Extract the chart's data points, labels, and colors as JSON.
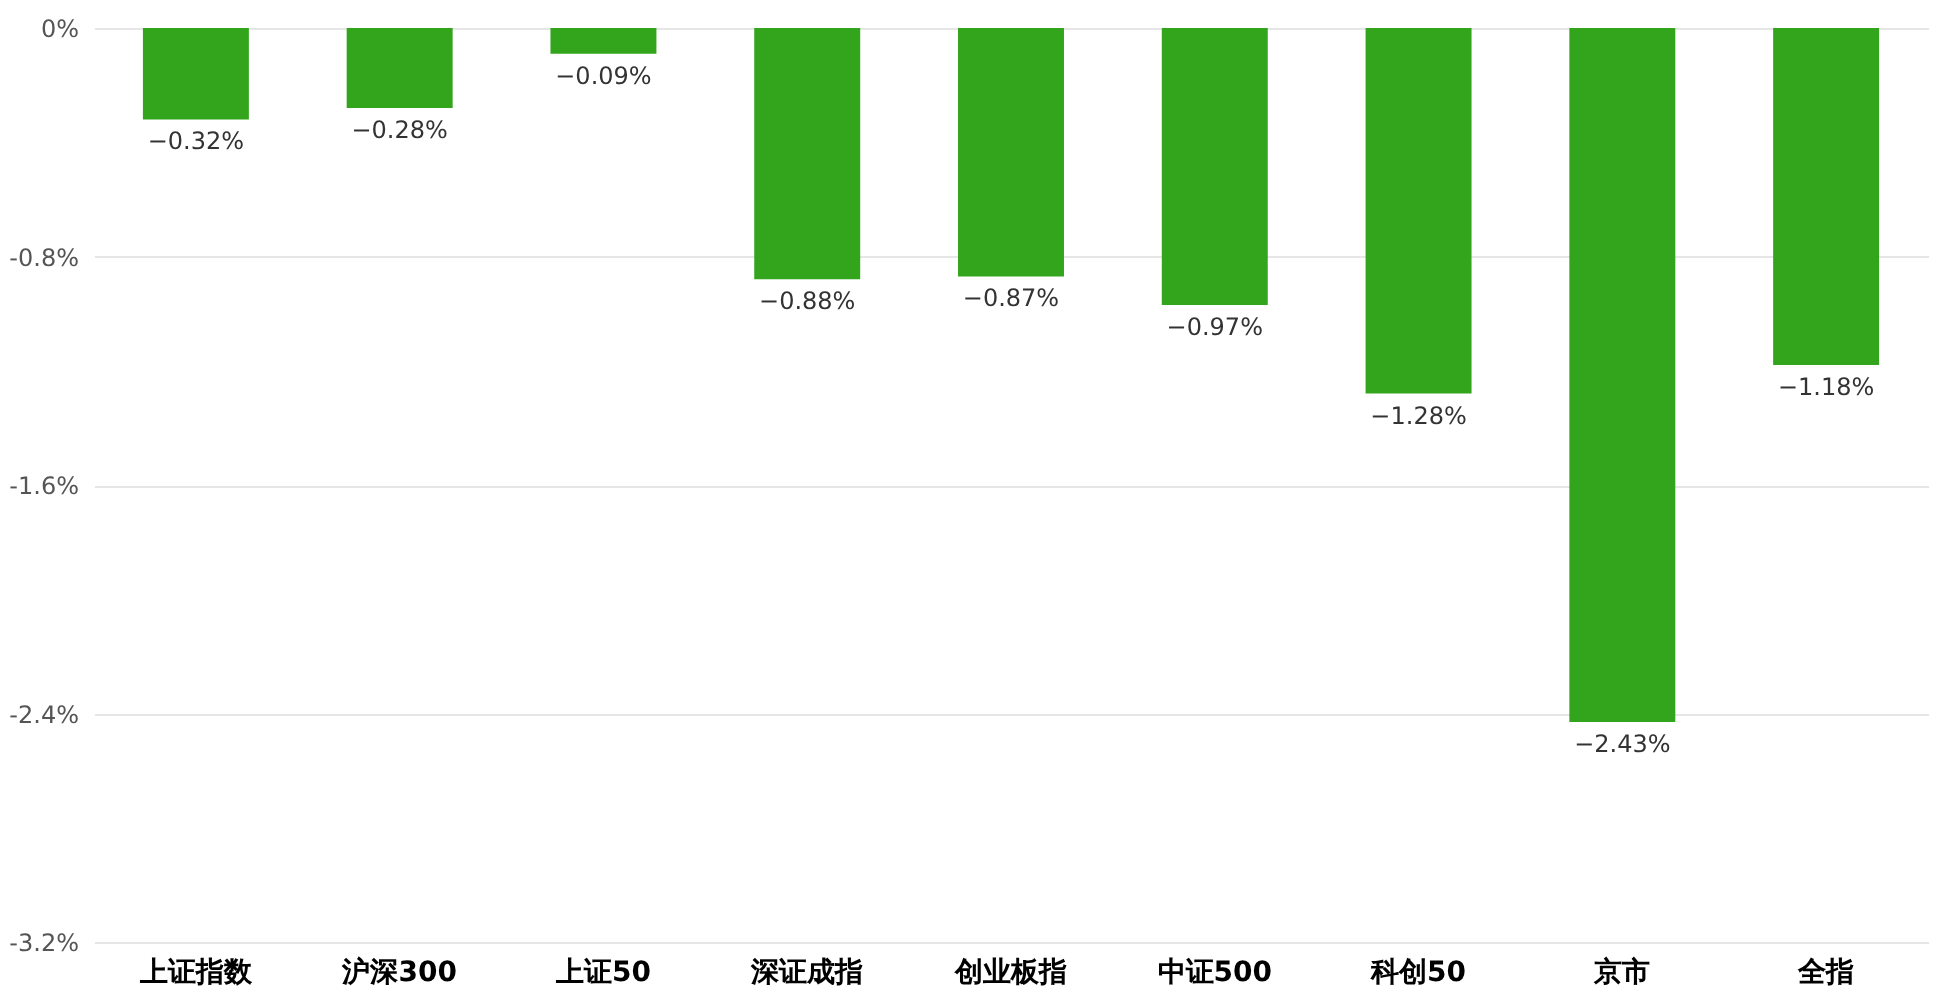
{
  "chart_data": {
    "type": "bar",
    "categories": [
      "上证指数",
      "沪深300",
      "上证50",
      "深证成指",
      "创业板指",
      "中证500",
      "科创50",
      "京市",
      "全指"
    ],
    "values": [
      -0.32,
      -0.28,
      -0.09,
      -0.88,
      -0.87,
      -0.97,
      -1.28,
      -2.43,
      -1.18
    ],
    "value_labels": [
      "−0.32%",
      "−0.28%",
      "−0.09%",
      "−0.88%",
      "−0.87%",
      "−0.97%",
      "−1.28%",
      "−2.43%",
      "−1.18%"
    ],
    "color": "#33a51c",
    "ylim": [
      -3.2,
      0
    ],
    "yticks": [
      {
        "value": 0,
        "label": "0%"
      },
      {
        "value": -0.8,
        "label": "-0.8%"
      },
      {
        "value": -1.6,
        "label": "-1.6%"
      },
      {
        "value": -2.4,
        "label": "-2.4%"
      },
      {
        "value": -3.2,
        "label": "-3.2%"
      }
    ],
    "grid": "y"
  }
}
